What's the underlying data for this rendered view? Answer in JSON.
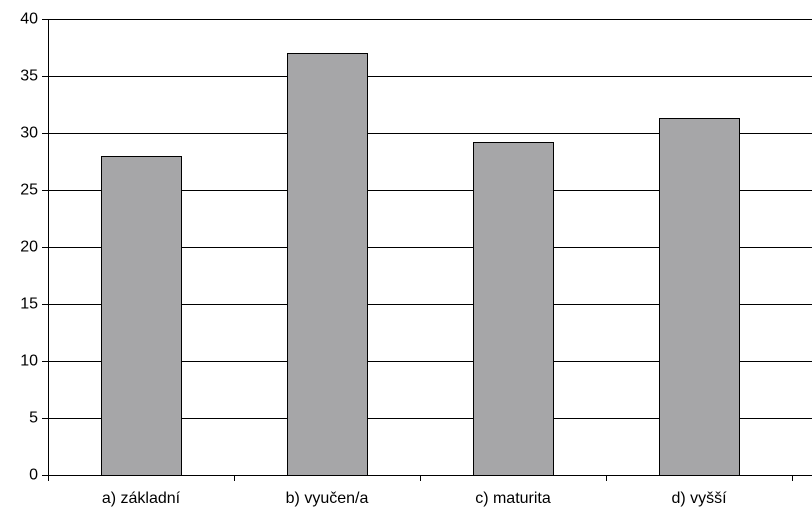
{
  "chart_data": {
    "type": "bar",
    "title": "",
    "xlabel": "",
    "ylabel": "",
    "categories": [
      "a) základní",
      "b) vyučen/a",
      "c) maturita",
      "d) vyšší"
    ],
    "values": [
      28,
      37,
      29.2,
      31.3
    ],
    "ylim": [
      0,
      40
    ],
    "yticks": [
      0,
      5,
      10,
      15,
      20,
      25,
      30,
      35,
      40
    ],
    "grid": "horizontal",
    "legend": "none",
    "colors": {
      "bar": "#a6a6a8",
      "bar_border": "#000000",
      "grid": "#000000",
      "background": "#ffffff"
    }
  }
}
